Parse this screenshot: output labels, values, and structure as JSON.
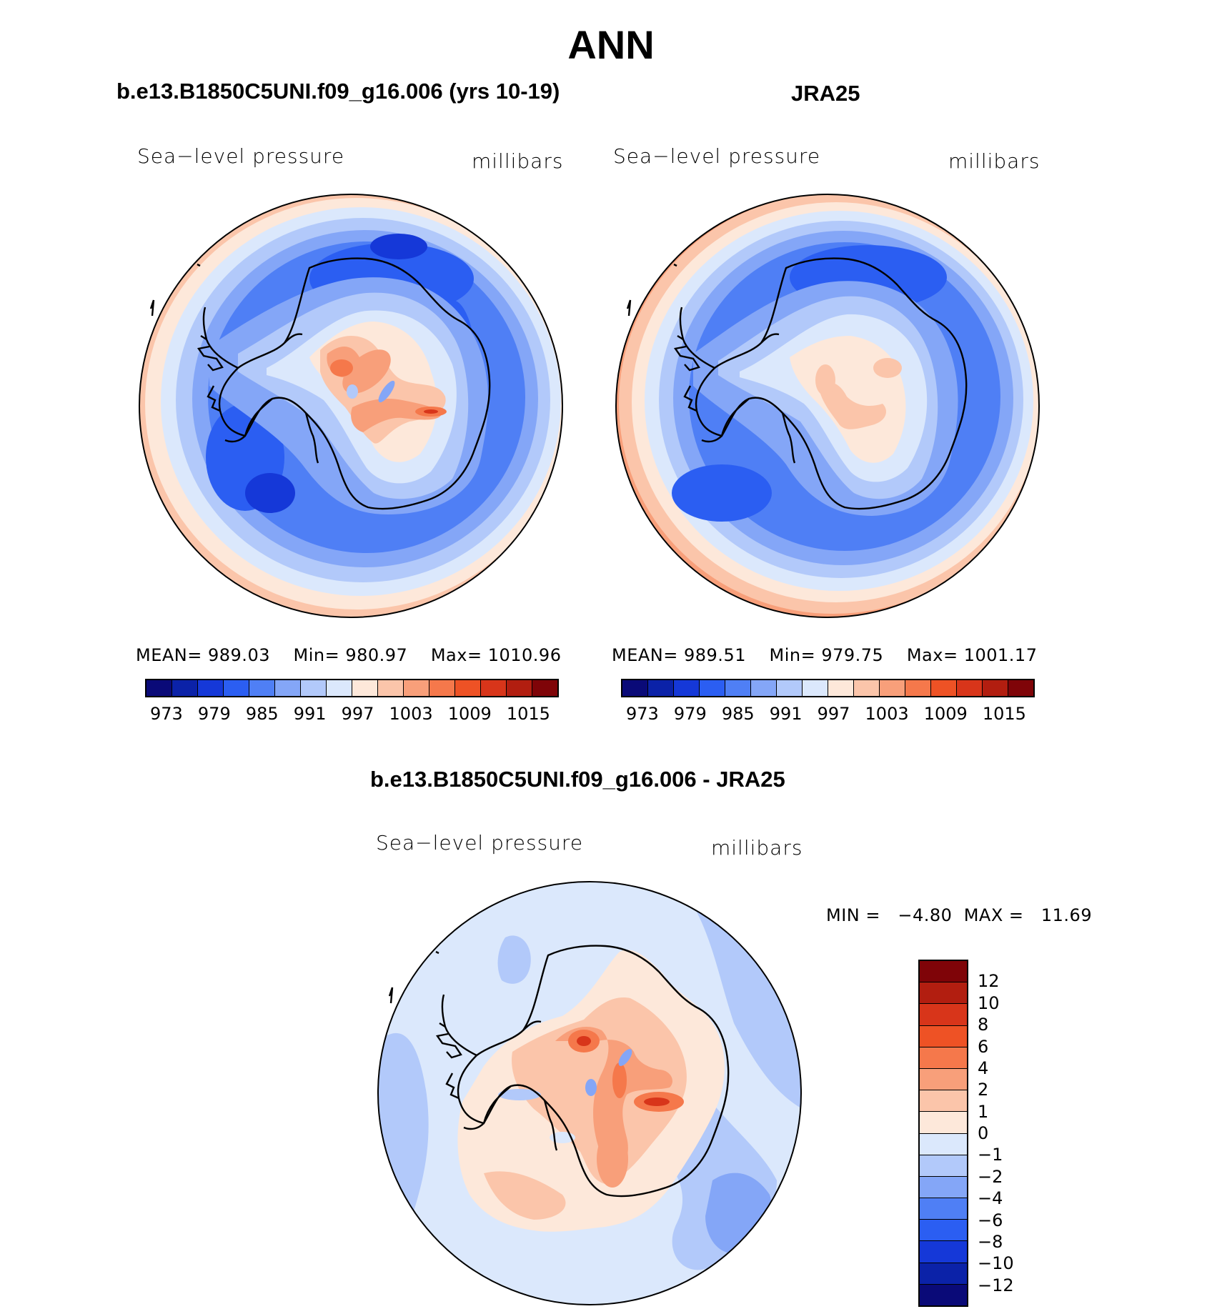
{
  "figure": {
    "season_title": "ANN"
  },
  "panels": [
    {
      "title": "b.e13.B1850C5UNI.f09_g16.006 (yrs 10-19)",
      "variable": "Sea−level  pressure",
      "units": "millibars",
      "stats": {
        "mean_label": "MEAN=",
        "mean": "989.03",
        "min_label": "Min=",
        "min": "980.97",
        "max_label": "Max=",
        "max": "1010.96"
      },
      "colorbar_ticks": [
        "973",
        "979",
        "985",
        "991",
        "997",
        "1003",
        "1009",
        "1015"
      ]
    },
    {
      "title": "JRA25",
      "variable": "Sea−level  pressure",
      "units": "millibars",
      "stats": {
        "mean_label": "MEAN=",
        "mean": "989.51",
        "min_label": "Min=",
        "min": "979.75",
        "max_label": "Max=",
        "max": "1001.17"
      },
      "colorbar_ticks": [
        "973",
        "979",
        "985",
        "991",
        "997",
        "1003",
        "1009",
        "1015"
      ]
    },
    {
      "title": "b.e13.B1850C5UNI.f09_g16.006 - JRA25",
      "variable": "Sea−level  pressure",
      "units": "millibars",
      "stats": {
        "min_label": "MIN  =",
        "min": "−4.80",
        "max_label": "MAX  =",
        "max": "11.69"
      },
      "colorbar_ticks": [
        "12",
        "10",
        "8",
        "6",
        "4",
        "2",
        "1",
        "0",
        "−1",
        "−2",
        "−4",
        "−6",
        "−8",
        "−10",
        "−12"
      ]
    }
  ],
  "colors": {
    "abs_scale": [
      "#0a0a78",
      "#0b22a8",
      "#1538d8",
      "#2b5ef2",
      "#4f7ff5",
      "#84a6f7",
      "#b2c9fa",
      "#dbe8fc",
      "#fde8da",
      "#fbc5aa",
      "#f89f7a",
      "#f5784b",
      "#ee5225",
      "#d8351a",
      "#b21e10",
      "#7f0408"
    ],
    "diff_scale": [
      "#7f0408",
      "#b21e10",
      "#d8351a",
      "#ee5225",
      "#f5784b",
      "#f89f7a",
      "#fbc5aa",
      "#fde8da",
      "#dbe8fc",
      "#b2c9fa",
      "#84a6f7",
      "#4f7ff5",
      "#2b5ef2",
      "#1538d8",
      "#0b22a8",
      "#0a0a78"
    ]
  }
}
